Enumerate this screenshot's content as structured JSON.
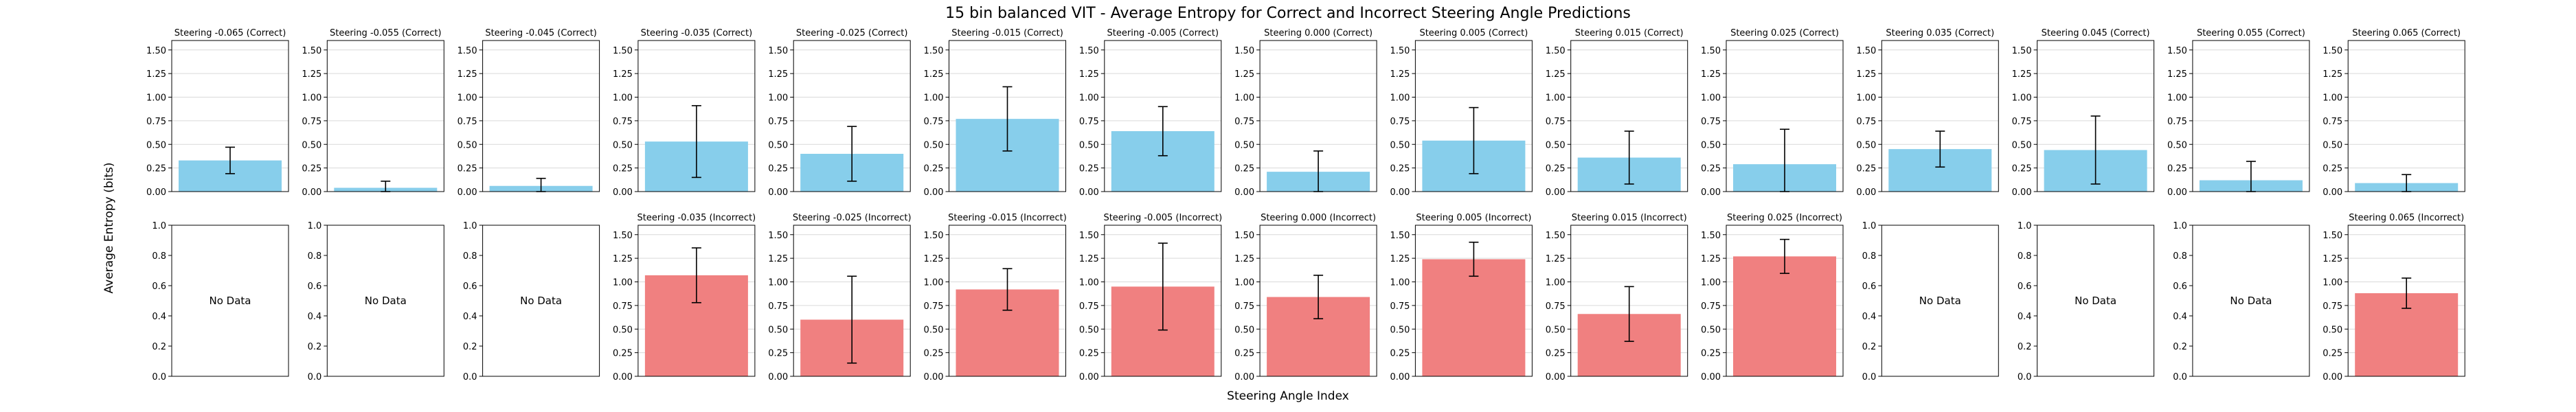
{
  "figure": {
    "title": "15 bin balanced VIT - Average Entropy for Correct and Incorrect Steering Angle Predictions",
    "xlabel": "Steering Angle Index",
    "ylabel": "Average Entropy (bits)",
    "no_data_text": "No Data"
  },
  "colors": {
    "correct": "#87ceeb",
    "incorrect": "#f08080",
    "grid": "#d9d9d9",
    "axis": "#000000",
    "errorbar": "#000000"
  },
  "chart_data": {
    "type": "bar",
    "grid": true,
    "panel_ylim": [
      0,
      1.6
    ],
    "panel_ytick_labels": [
      "0.00",
      "0.25",
      "0.50",
      "0.75",
      "1.00",
      "1.25",
      "1.50"
    ],
    "empty_panel_ylim": [
      0,
      1
    ],
    "empty_panel_ytick_labels": [
      "0.0",
      "0.2",
      "0.4",
      "0.6",
      "0.8",
      "1.0"
    ],
    "rows": [
      {
        "name": "Correct",
        "panels": [
          {
            "title": "Steering -0.065 (Correct)",
            "value": 0.33,
            "err": 0.14
          },
          {
            "title": "Steering -0.055 (Correct)",
            "value": 0.04,
            "err": 0.07
          },
          {
            "title": "Steering -0.045 (Correct)",
            "value": 0.06,
            "err": 0.08
          },
          {
            "title": "Steering -0.035 (Correct)",
            "value": 0.53,
            "err": 0.38
          },
          {
            "title": "Steering -0.025 (Correct)",
            "value": 0.4,
            "err": 0.29
          },
          {
            "title": "Steering -0.015 (Correct)",
            "value": 0.77,
            "err": 0.34
          },
          {
            "title": "Steering -0.005 (Correct)",
            "value": 0.64,
            "err": 0.26
          },
          {
            "title": "Steering 0.000 (Correct)",
            "value": 0.21,
            "err": 0.22
          },
          {
            "title": "Steering 0.005 (Correct)",
            "value": 0.54,
            "err": 0.35
          },
          {
            "title": "Steering 0.015 (Correct)",
            "value": 0.36,
            "err": 0.28
          },
          {
            "title": "Steering 0.025 (Correct)",
            "value": 0.29,
            "err": 0.37
          },
          {
            "title": "Steering 0.035 (Correct)",
            "value": 0.45,
            "err": 0.19
          },
          {
            "title": "Steering 0.045 (Correct)",
            "value": 0.44,
            "err": 0.36
          },
          {
            "title": "Steering 0.055 (Correct)",
            "value": 0.12,
            "err": 0.2
          },
          {
            "title": "Steering 0.065 (Correct)",
            "value": 0.09,
            "err": 0.09
          }
        ]
      },
      {
        "name": "Incorrect",
        "panels": [
          {
            "title": "",
            "value": null
          },
          {
            "title": "",
            "value": null
          },
          {
            "title": "",
            "value": null
          },
          {
            "title": "Steering -0.035 (Incorrect)",
            "value": 1.07,
            "err": 0.29
          },
          {
            "title": "Steering -0.025 (Incorrect)",
            "value": 0.6,
            "err": 0.46
          },
          {
            "title": "Steering -0.015 (Incorrect)",
            "value": 0.92,
            "err": 0.22
          },
          {
            "title": "Steering -0.005 (Incorrect)",
            "value": 0.95,
            "err": 0.46
          },
          {
            "title": "Steering 0.000 (Incorrect)",
            "value": 0.84,
            "err": 0.23
          },
          {
            "title": "Steering 0.005 (Incorrect)",
            "value": 1.24,
            "err": 0.18
          },
          {
            "title": "Steering 0.015 (Incorrect)",
            "value": 0.66,
            "err": 0.29
          },
          {
            "title": "Steering 0.025 (Incorrect)",
            "value": 1.27,
            "err": 0.18
          },
          {
            "title": "",
            "value": null
          },
          {
            "title": "",
            "value": null
          },
          {
            "title": "",
            "value": null
          },
          {
            "title": "Steering 0.065 (Incorrect)",
            "value": 0.88,
            "err": 0.16
          }
        ]
      }
    ]
  }
}
